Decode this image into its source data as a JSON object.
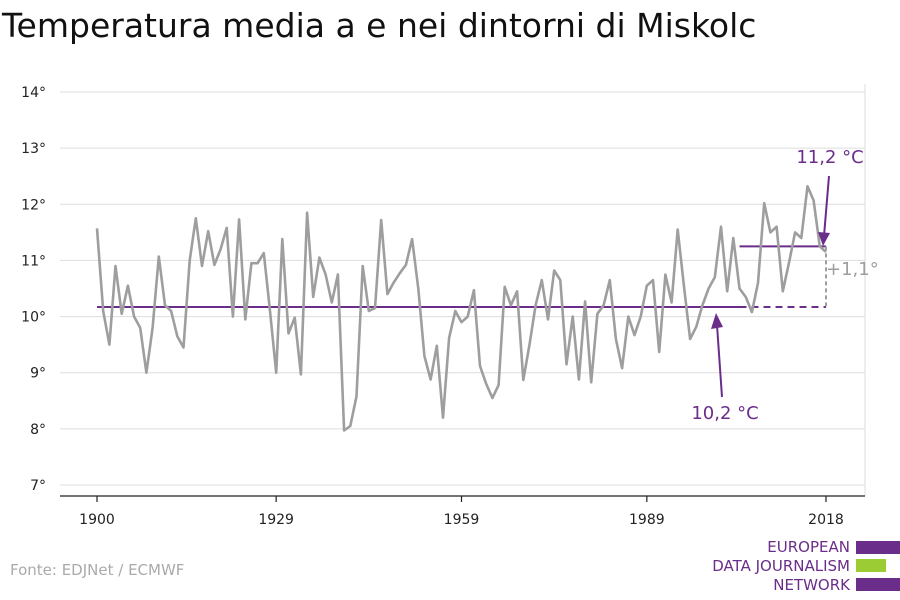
{
  "title": "Temperatura media a e nei dintorni di Miskolc",
  "source": "Fonte: EDJNet / ECMWF",
  "logo": {
    "lines": [
      "EUROPEAN",
      "DATA JOURNALISM",
      "NETWORK"
    ],
    "colors": {
      "purple": "#6b2d8a",
      "green": "#9ccc34"
    }
  },
  "colors": {
    "line": "#9e9e9e",
    "accent": "#6b2d8a",
    "grid": "#dddddd"
  },
  "chart_data": {
    "type": "line",
    "title": "Temperatura media a e nei dintorni di Miskolc",
    "xlabel": "",
    "ylabel": "",
    "xlim": [
      1900,
      2018
    ],
    "ylim": [
      7,
      14
    ],
    "x_ticks": [
      1900,
      1929,
      1959,
      1989,
      2018
    ],
    "x_tick_labels": [
      "1900",
      "1929",
      "1959",
      "1989",
      "2018"
    ],
    "y_ticks": [
      7,
      8,
      9,
      10,
      11,
      12,
      13,
      14
    ],
    "y_tick_labels": [
      "7°",
      "8°",
      "9°",
      "10°",
      "11°",
      "12°",
      "13°",
      "14°"
    ],
    "grid": true,
    "series": [
      {
        "x_start": 1900,
        "values": [
          11.57,
          10.1,
          9.5,
          10.9,
          10.05,
          10.55,
          10.0,
          9.8,
          9.0,
          9.8,
          11.07,
          10.2,
          10.1,
          9.65,
          9.45,
          11.0,
          11.75,
          10.9,
          11.52,
          10.92,
          11.2,
          11.58,
          10.0,
          11.73,
          9.95,
          10.95,
          10.95,
          11.13,
          10.1,
          9.0,
          11.38,
          9.7,
          9.98,
          8.97,
          11.85,
          10.35,
          11.05,
          10.75,
          10.25,
          10.75,
          7.97,
          8.05,
          8.58,
          10.9,
          10.1,
          10.15,
          11.72,
          10.4,
          10.6,
          10.77,
          10.92,
          11.38,
          10.5,
          9.3,
          8.88,
          9.48,
          8.2,
          9.62,
          10.1,
          9.9,
          10.0,
          10.47,
          9.12,
          8.8,
          8.55,
          8.78,
          10.53,
          10.2,
          10.45,
          8.87,
          9.5,
          10.2,
          10.65,
          9.95,
          10.82,
          10.65,
          9.15,
          10.0,
          8.88,
          10.27,
          8.83,
          10.05,
          10.2,
          10.65,
          9.6,
          9.08,
          10.0,
          9.67,
          10.0,
          10.55,
          10.65,
          9.37,
          10.75,
          10.25,
          11.55,
          10.55,
          9.6,
          9.82,
          10.2,
          10.5,
          10.7,
          11.6,
          10.45,
          11.4,
          10.5,
          10.35,
          10.08,
          10.6,
          12.02,
          11.5,
          11.6,
          10.45,
          10.95,
          11.5,
          11.4,
          12.32,
          12.07,
          11.25,
          11.15
        ]
      }
    ],
    "reference_lines": [
      {
        "label": "10,2 °C",
        "value": 10.17,
        "x_from": 1900,
        "x_to": 2018,
        "style": "solid-then-dashed",
        "dash_from": 2004
      },
      {
        "label": "11,2 °C",
        "value": 11.25,
        "x_from": 2004,
        "x_to": 2018,
        "style": "solid"
      }
    ],
    "difference_label": "+1,1°",
    "annotations": [
      {
        "text": "11,2 °C",
        "color": "#6b2d8a"
      },
      {
        "text": "10,2 °C",
        "color": "#6b2d8a"
      },
      {
        "text": "+1,1°",
        "color": "#9e9e9e"
      }
    ]
  }
}
